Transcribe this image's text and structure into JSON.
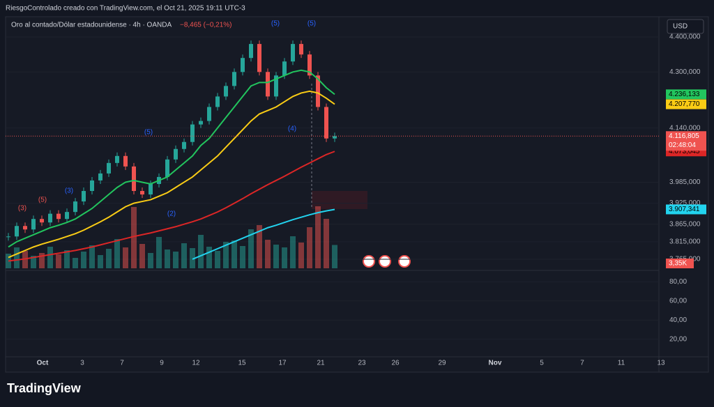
{
  "header": {
    "attribution": "RiesgoControlado creado con TradingView.com, el Oct 21, 2025 19:11 UTC-3",
    "symbol": "Oro al contado/Dólar estadounidense · 4h · OANDA",
    "change": "−8,465 (−0,21%)",
    "currency": "USD",
    "brand": "TradingView"
  },
  "chart_data": {
    "type": "candlestick",
    "up_color": "#26a69a",
    "down_color": "#ef5350",
    "close": [
      3830,
      3860,
      3850,
      3880,
      3870,
      3895,
      3880,
      3900,
      3930,
      3960,
      3990,
      4010,
      4040,
      4060,
      4030,
      3960,
      3950,
      3980,
      4000,
      4050,
      4080,
      4100,
      4150,
      4160,
      4200,
      4230,
      4260,
      4300,
      4340,
      4380,
      4300,
      4230,
      4290,
      4330,
      4380,
      4350,
      4290,
      4200,
      4110,
      4116.805
    ],
    "current_label": "4.116,805",
    "countdown": "02:48:04",
    "series": [
      {
        "name": "green",
        "color": "#22c55e",
        "last_label": "4.236,133",
        "values": [
          3800,
          3815,
          3825,
          3835,
          3845,
          3855,
          3862,
          3870,
          3880,
          3895,
          3910,
          3930,
          3950,
          3970,
          3985,
          3990,
          3985,
          3980,
          3990,
          4000,
          4020,
          4040,
          4060,
          4090,
          4110,
          4140,
          4170,
          4200,
          4230,
          4260,
          4270,
          4270,
          4280,
          4290,
          4300,
          4305,
          4300,
          4280,
          4255,
          4236.133
        ]
      },
      {
        "name": "yellow",
        "color": "#facc15",
        "last_label": "4.207,770",
        "values": [
          3770,
          3780,
          3790,
          3800,
          3808,
          3815,
          3822,
          3830,
          3838,
          3848,
          3860,
          3872,
          3885,
          3900,
          3915,
          3925,
          3930,
          3935,
          3945,
          3955,
          3970,
          3985,
          4000,
          4020,
          4040,
          4060,
          4085,
          4110,
          4135,
          4160,
          4180,
          4190,
          4200,
          4215,
          4230,
          4240,
          4245,
          4240,
          4225,
          4207.77
        ]
      },
      {
        "name": "red",
        "color": "#dc2626",
        "last_label": "4.073,045",
        "values": [
          3760,
          3763,
          3766,
          3770,
          3774,
          3778,
          3782,
          3786,
          3790,
          3795,
          3800,
          3806,
          3812,
          3818,
          3824,
          3830,
          3835,
          3840,
          3846,
          3852,
          3858,
          3865,
          3872,
          3880,
          3890,
          3900,
          3912,
          3925,
          3938,
          3952,
          3965,
          3978,
          3990,
          4002,
          4015,
          4028,
          4040,
          4052,
          4064,
          4073.045
        ]
      },
      {
        "name": "cyan",
        "color": "#22d3ee",
        "last_label": "3.907,341",
        "values": [
          null,
          null,
          null,
          null,
          null,
          null,
          null,
          null,
          null,
          null,
          null,
          null,
          null,
          null,
          null,
          null,
          null,
          null,
          null,
          null,
          null,
          null,
          3765,
          3775,
          3785,
          3795,
          3805,
          3815,
          3825,
          3835,
          3845,
          3855,
          3862,
          3870,
          3878,
          3885,
          3892,
          3898,
          3903,
          3907.341
        ]
      }
    ],
    "volume": {
      "values": [
        2.1,
        3.0,
        2.5,
        1.8,
        2.2,
        3.1,
        2.0,
        2.6,
        1.5,
        2.4,
        3.3,
        1.9,
        2.8,
        4.2,
        3.0,
        8.8,
        3.5,
        2.2,
        4.5,
        2.7,
        2.4,
        3.6,
        2.9,
        4.8,
        3.1,
        2.5,
        3.8,
        4.0,
        3.2,
        5.6,
        6.2,
        4.1,
        3.4,
        3.0,
        4.6,
        3.7,
        5.9,
        8.9,
        7.1,
        3.35
      ],
      "last_label": "3,35K",
      "ylim": [
        0,
        10
      ]
    },
    "ylim": [
      3739,
      4426
    ],
    "yticks": [
      {
        "value": 4400,
        "label": "4.400,000"
      },
      {
        "value": 4300,
        "label": "4.300,000"
      },
      {
        "value": 4140,
        "label": "4.140,000"
      },
      {
        "value": 3985,
        "label": "3.985,000"
      },
      {
        "value": 3925,
        "label": "3.925,000"
      },
      {
        "value": 3865,
        "label": "3.865,000"
      },
      {
        "value": 3815,
        "label": "3.815,000"
      },
      {
        "value": 3765,
        "label": "3.765,000"
      }
    ],
    "osc_ylim": [
      3,
      89
    ],
    "osc_yticks": [
      {
        "value": 80,
        "label": "80,00"
      },
      {
        "value": 60,
        "label": "60,00"
      },
      {
        "value": 40,
        "label": "40,00"
      },
      {
        "value": 20,
        "label": "20,00"
      }
    ],
    "x_labels": [
      "Oct",
      "3",
      "7",
      "9",
      "12",
      "15",
      "17",
      "21",
      "23",
      "26",
      "29",
      "Nov",
      "5",
      "7",
      "11",
      "13"
    ],
    "annotations": [
      "(3)",
      "(5)",
      "(3)",
      "(5)",
      "(2)",
      "(4)",
      "(5)",
      "(5)"
    ]
  }
}
